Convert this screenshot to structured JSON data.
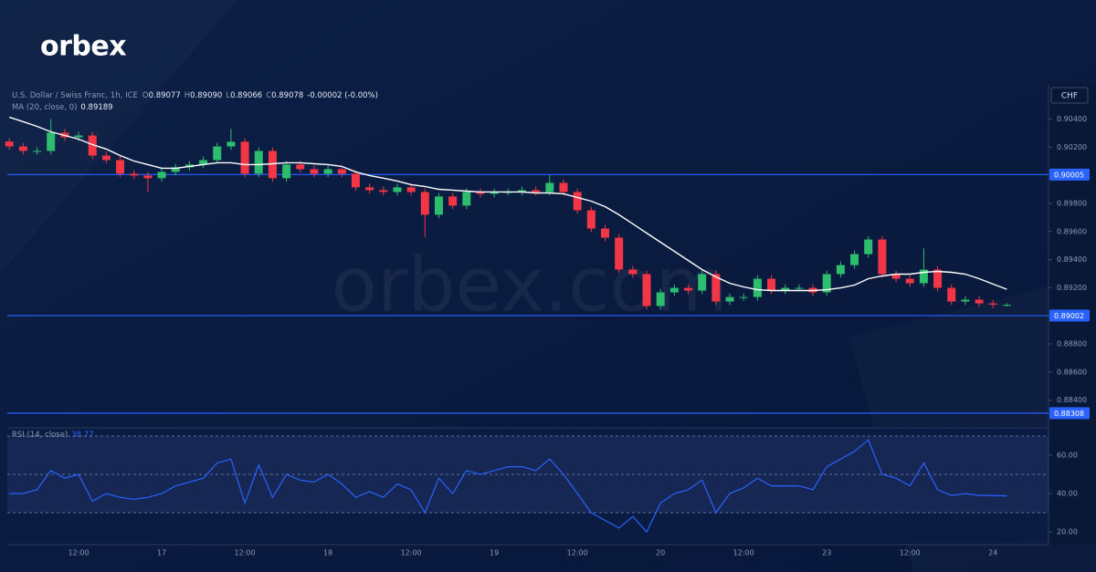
{
  "logo": "orbex",
  "watermark": "orbex.com",
  "chart_data": [
    {
      "type": "candlestick",
      "title": "U.S. Dollar / Swiss Franc, 1h, ICE",
      "ohlc_legend": [
        {
          "label": "O",
          "value": "0.89077"
        },
        {
          "label": "H",
          "value": "0.89090"
        },
        {
          "label": "L",
          "value": "0.89066"
        },
        {
          "label": "C",
          "value": "0.89078"
        }
      ],
      "change": "-0.00002 (-0.00%)",
      "currency": "CHF",
      "categories": [
        null,
        null,
        null,
        null,
        null,
        "12:00",
        null,
        null,
        null,
        null,
        null,
        "17",
        null,
        null,
        null,
        null,
        null,
        "12:00",
        null,
        null,
        null,
        null,
        null,
        "18",
        null,
        null,
        null,
        null,
        null,
        "12:00",
        null,
        null,
        null,
        null,
        null,
        "19",
        null,
        null,
        null,
        null,
        null,
        "12:00",
        null,
        null,
        null,
        null,
        null,
        "20",
        null,
        null,
        null,
        null,
        null,
        "12:00",
        null,
        null,
        null,
        null,
        null,
        "23",
        null,
        null,
        null,
        null,
        null,
        "12:00",
        null,
        null,
        null,
        null,
        null,
        "24",
        null
      ],
      "open": [
        0.9024,
        0.90205,
        0.90173,
        0.90173,
        0.90303,
        0.9027,
        0.90283,
        0.9014,
        0.90108,
        0.90011,
        0.89998,
        0.89979,
        0.90024,
        0.90056,
        0.90076,
        0.90108,
        0.90205,
        0.90238,
        0.90011,
        0.90173,
        0.89979,
        0.90076,
        0.90043,
        0.90011,
        0.90043,
        0.90011,
        0.89914,
        0.89894,
        0.89881,
        0.89914,
        0.89881,
        0.89719,
        0.89849,
        0.89784,
        0.89881,
        0.89868,
        0.89881,
        0.89881,
        0.89894,
        0.89881,
        0.89946,
        0.89881,
        0.89751,
        0.89621,
        0.89556,
        0.89329,
        0.89297,
        0.8907,
        0.89167,
        0.89199,
        0.8918,
        0.89297,
        0.89102,
        0.89134,
        0.89134,
        0.89264,
        0.8918,
        0.89199,
        0.89199,
        0.89167,
        0.89297,
        0.89361,
        0.89439,
        0.89543,
        0.89297,
        0.89264,
        0.89232,
        0.89329,
        0.89199,
        0.89102,
        0.89115,
        0.89089,
        0.89077
      ],
      "high": [
        0.90265,
        0.9023,
        0.90198,
        0.904,
        0.90328,
        0.90308,
        0.90308,
        0.90165,
        0.90133,
        0.90036,
        0.90023,
        0.90049,
        0.90081,
        0.90101,
        0.90133,
        0.9023,
        0.9033,
        0.90263,
        0.90198,
        0.90198,
        0.90101,
        0.90101,
        0.90068,
        0.90068,
        0.90068,
        0.90036,
        0.89939,
        0.89919,
        0.89939,
        0.89939,
        0.89906,
        0.89874,
        0.89874,
        0.89906,
        0.89906,
        0.89906,
        0.89906,
        0.89919,
        0.89919,
        0.9,
        0.89971,
        0.89906,
        0.89776,
        0.89646,
        0.89581,
        0.89354,
        0.89322,
        0.89192,
        0.89224,
        0.89224,
        0.89322,
        0.89322,
        0.89159,
        0.89159,
        0.89289,
        0.89289,
        0.89224,
        0.89224,
        0.89224,
        0.89322,
        0.89386,
        0.89464,
        0.89568,
        0.89568,
        0.89322,
        0.89289,
        0.8948,
        0.89354,
        0.89224,
        0.8914,
        0.8914,
        0.89114,
        0.8909
      ],
      "low": [
        0.9018,
        0.90148,
        0.90148,
        0.90148,
        0.90245,
        0.90245,
        0.90115,
        0.90083,
        0.89986,
        0.89973,
        0.8988,
        0.89954,
        0.89999,
        0.90031,
        0.90051,
        0.90083,
        0.9018,
        0.89986,
        0.89986,
        0.89954,
        0.89954,
        0.90018,
        0.89986,
        0.89986,
        0.89986,
        0.89889,
        0.89869,
        0.89856,
        0.89856,
        0.89856,
        0.8956,
        0.89694,
        0.89759,
        0.89759,
        0.89843,
        0.89843,
        0.89856,
        0.89856,
        0.89856,
        0.89856,
        0.89856,
        0.89726,
        0.89596,
        0.89531,
        0.89304,
        0.89272,
        0.89045,
        0.89045,
        0.89142,
        0.89155,
        0.89155,
        0.89077,
        0.89077,
        0.89109,
        0.89109,
        0.89155,
        0.89155,
        0.89174,
        0.89142,
        0.89142,
        0.89272,
        0.89336,
        0.89414,
        0.89272,
        0.89239,
        0.89207,
        0.89207,
        0.89174,
        0.89077,
        0.89077,
        0.89064,
        0.89055,
        0.89066
      ],
      "close": [
        0.90205,
        0.90173,
        0.90173,
        0.90303,
        0.9027,
        0.90283,
        0.9014,
        0.90108,
        0.90011,
        0.89998,
        0.89979,
        0.90024,
        0.90056,
        0.90076,
        0.90108,
        0.90205,
        0.90238,
        0.90011,
        0.90173,
        0.89979,
        0.90076,
        0.90043,
        0.90011,
        0.90043,
        0.90011,
        0.89914,
        0.89894,
        0.89881,
        0.89914,
        0.89881,
        0.89719,
        0.89849,
        0.89784,
        0.89881,
        0.89868,
        0.89881,
        0.89881,
        0.89894,
        0.89881,
        0.89946,
        0.89881,
        0.89751,
        0.89621,
        0.89556,
        0.89329,
        0.89297,
        0.8907,
        0.89167,
        0.89199,
        0.8918,
        0.89297,
        0.89102,
        0.89134,
        0.89134,
        0.89264,
        0.8918,
        0.89199,
        0.89199,
        0.89167,
        0.89297,
        0.89361,
        0.89439,
        0.89543,
        0.89297,
        0.89264,
        0.89232,
        0.89329,
        0.89199,
        0.89102,
        0.89115,
        0.89089,
        0.8908,
        0.89078
      ],
      "up_color": "#2dbd6e",
      "down_color": "#f23645",
      "series": [
        {
          "name": "MA (20, close, 0)",
          "current": "0.89189",
          "color": "#ffffff",
          "values": [
            0.90413,
            0.90381,
            0.90348,
            0.90309,
            0.90283,
            0.90257,
            0.90218,
            0.90186,
            0.9014,
            0.90101,
            0.90076,
            0.9005,
            0.9005,
            0.90063,
            0.90076,
            0.90089,
            0.90089,
            0.90076,
            0.90076,
            0.90082,
            0.90089,
            0.90089,
            0.90082,
            0.90076,
            0.90063,
            0.90024,
            0.89998,
            0.89979,
            0.89959,
            0.89933,
            0.8992,
            0.899,
            0.89894,
            0.89887,
            0.89881,
            0.89881,
            0.89881,
            0.89881,
            0.89874,
            0.89874,
            0.89868,
            0.89842,
            0.89816,
            0.89777,
            0.89719,
            0.89654,
            0.89589,
            0.89524,
            0.89459,
            0.89394,
            0.89329,
            0.89277,
            0.89232,
            0.89206,
            0.89186,
            0.8918,
            0.8918,
            0.8918,
            0.8918,
            0.89186,
            0.89199,
            0.89219,
            0.89264,
            0.89284,
            0.89297,
            0.89297,
            0.8931,
            0.89316,
            0.8931,
            0.89297,
            0.89264,
            0.89226,
            0.89189
          ]
        }
      ],
      "levels": [
        {
          "value": 0.90005,
          "label": "0.90005"
        },
        {
          "value": 0.89002,
          "label": "0.89002"
        },
        {
          "value": 0.88308,
          "label": "0.88308"
        }
      ],
      "level_color": "#2962ff",
      "ylim": [
        0.8821,
        0.9063
      ],
      "yticks": [
        {
          "value": 0.904,
          "label": "0.90400"
        },
        {
          "value": 0.902,
          "label": "0.90200"
        },
        {
          "value": 0.898,
          "label": "0.89800"
        },
        {
          "value": 0.896,
          "label": "0.89600"
        },
        {
          "value": 0.894,
          "label": "0.89400"
        },
        {
          "value": 0.892,
          "label": "0.89200"
        },
        {
          "value": 0.888,
          "label": "0.88800"
        },
        {
          "value": 0.886,
          "label": "0.88600"
        },
        {
          "value": 0.884,
          "label": "0.88400"
        }
      ]
    },
    {
      "type": "line",
      "series": [
        {
          "name": "RSI (14, close)",
          "current": "38.77",
          "color": "#2962ff",
          "values": [
            40,
            40,
            42,
            52,
            48,
            50,
            36,
            40,
            38,
            37,
            38,
            40,
            44,
            46,
            48,
            56,
            58,
            35,
            55,
            38,
            50,
            47,
            46,
            50,
            45,
            38,
            41,
            38,
            45,
            42,
            30,
            48,
            40,
            52,
            50,
            52,
            54,
            54,
            52,
            58,
            50,
            40,
            30,
            26,
            22,
            28,
            20,
            35,
            40,
            42,
            47,
            30,
            40,
            43,
            48,
            44,
            44,
            44,
            42,
            54,
            58,
            62,
            68,
            50,
            48,
            44,
            56,
            42,
            39,
            40,
            39,
            39,
            38.77
          ]
        }
      ],
      "bands": [
        70,
        50,
        30
      ],
      "ylim": [
        14.3,
        73.8
      ],
      "yticks": [
        {
          "value": 60,
          "label": "60.00"
        },
        {
          "value": 40,
          "label": "40.00"
        },
        {
          "value": 20,
          "label": "20.00"
        }
      ]
    }
  ]
}
